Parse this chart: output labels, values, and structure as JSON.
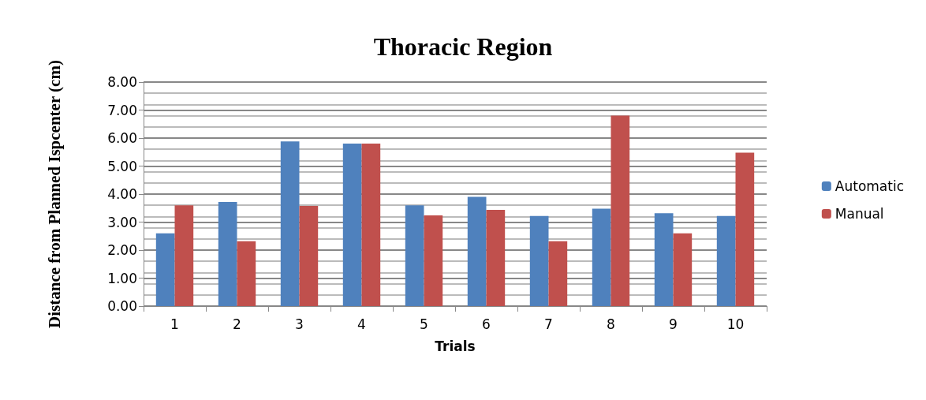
{
  "chart_data": {
    "type": "bar",
    "title": "Thoracic Region",
    "xlabel": "Trials",
    "ylabel": "Distance from Planned Ispcenter (cm)",
    "categories": [
      "1",
      "2",
      "3",
      "4",
      "5",
      "6",
      "7",
      "8",
      "9",
      "10"
    ],
    "series": [
      {
        "name": "Automatic",
        "color": "#4f81bd",
        "values": [
          2.6,
          3.72,
          5.88,
          5.8,
          3.6,
          3.9,
          3.22,
          3.48,
          3.32,
          3.22
        ]
      },
      {
        "name": "Manual",
        "color": "#c0504d",
        "values": [
          3.6,
          2.32,
          3.58,
          5.8,
          3.24,
          3.44,
          2.32,
          6.8,
          2.6,
          5.48
        ]
      }
    ],
    "ylim": [
      0,
      8
    ],
    "yticks": [
      {
        "value": 0,
        "label": "0.00"
      },
      {
        "value": 1,
        "label": "1.00"
      },
      {
        "value": 2,
        "label": "2.00"
      },
      {
        "value": 3,
        "label": "3.00"
      },
      {
        "value": 4,
        "label": "4.00"
      },
      {
        "value": 5,
        "label": "5.00"
      },
      {
        "value": 6,
        "label": "6.00"
      },
      {
        "value": 7,
        "label": "7.00"
      },
      {
        "value": 8,
        "label": "8.00"
      }
    ],
    "grid": "y",
    "legend": "right"
  }
}
